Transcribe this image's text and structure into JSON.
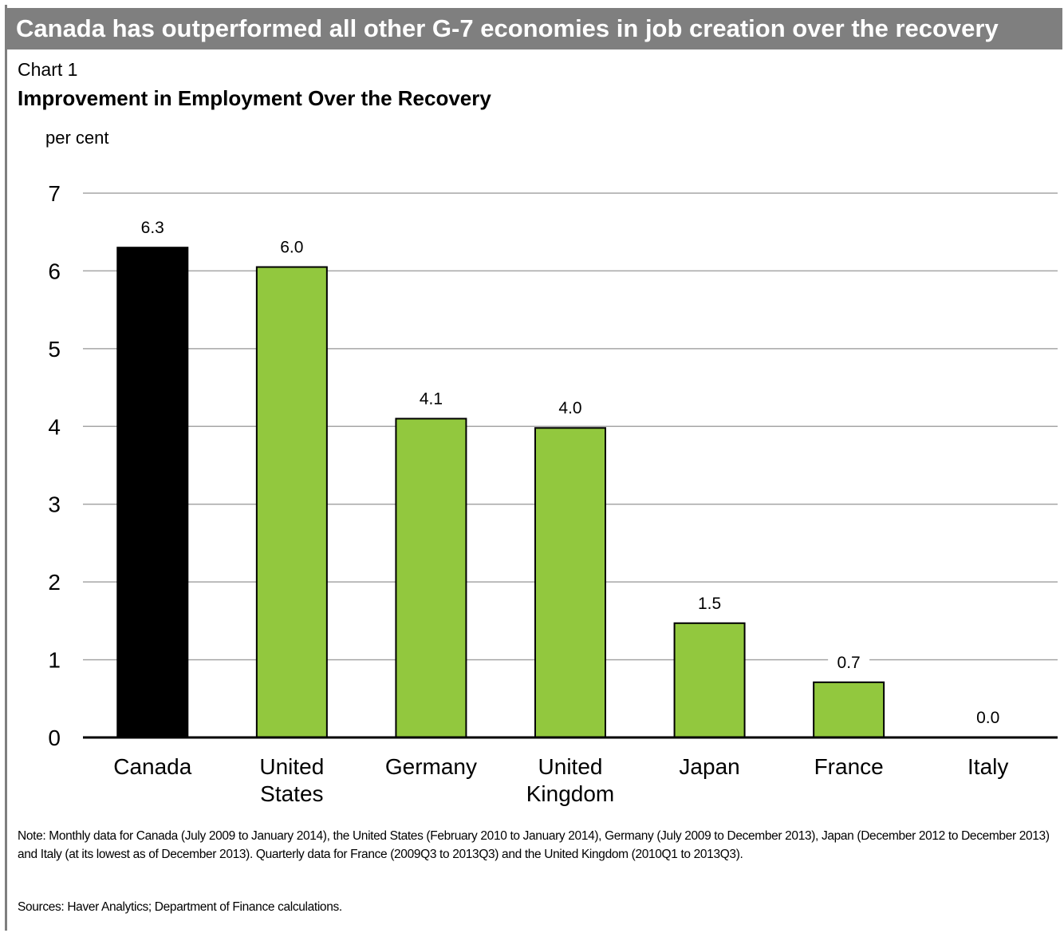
{
  "banner": {
    "title": "Canada has outperformed all other G-7 economies in job creation over the recovery"
  },
  "chart_number": "Chart 1",
  "chart_data": {
    "type": "bar",
    "title": "Improvement in Employment Over the Recovery",
    "ylabel": "per cent",
    "xlabel": "",
    "categories": [
      [
        "Canada"
      ],
      [
        "United",
        "States"
      ],
      [
        "Germany"
      ],
      [
        "United",
        "Kingdom"
      ],
      [
        "Japan"
      ],
      [
        "France"
      ],
      [
        "Italy"
      ]
    ],
    "values": [
      6.3,
      6.05,
      4.1,
      3.98,
      1.47,
      0.71,
      0.0
    ],
    "data_labels": [
      "6.3",
      "6.0",
      "4.1",
      "4.0",
      "1.5",
      "0.7",
      "0.0"
    ],
    "bar_colors": [
      "#000000",
      "#92c83e",
      "#92c83e",
      "#92c83e",
      "#92c83e",
      "#92c83e",
      "#92c83e"
    ],
    "ylim": [
      0,
      7
    ],
    "yticks": [
      0,
      1,
      2,
      3,
      4,
      5,
      6,
      7
    ],
    "grid": true,
    "legend": "none"
  },
  "note": "Note: Monthly data for Canada (July 2009 to January 2014), the United States (February 2010 to January 2014), Germany (July 2009 to December 2013), Japan (December 2012 to December 2013) and Italy (at its lowest as of December 2013). Quarterly data for France (2009Q3 to 2013Q3) and the United Kingdom (2010Q1 to 2013Q3).",
  "sources": "Sources: Haver Analytics; Department of Finance calculations.",
  "colors": {
    "banner": "#7f7f7f",
    "highlight_bar": "#000000",
    "bar": "#92c83e",
    "gridline": "#a6a6a6"
  }
}
